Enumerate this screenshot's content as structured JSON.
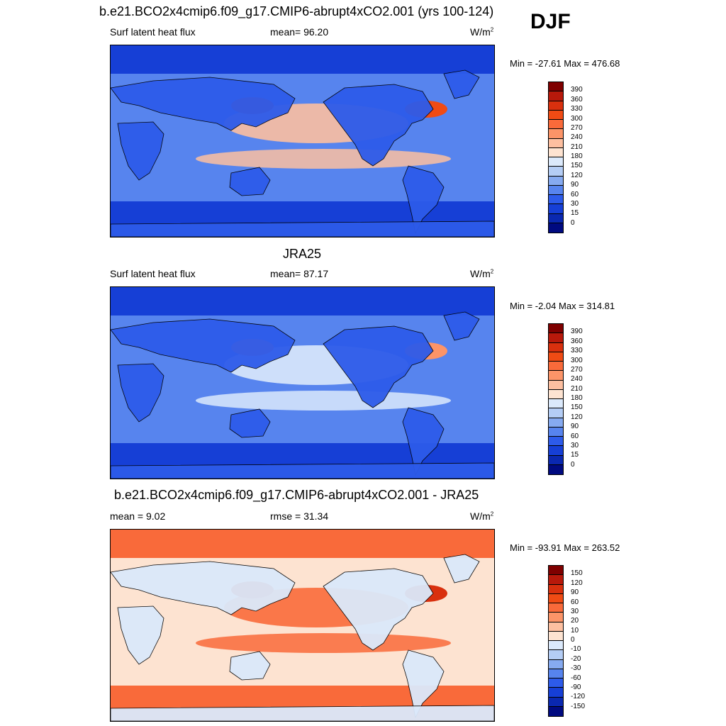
{
  "season": "DJF",
  "panels": [
    {
      "title": "b.e21.BCO2x4cmip6.f09_g17.CMIP6-abrupt4xCO2.001 (yrs 100-124)",
      "left_label": "Surf latent heat flux",
      "center_label": "mean=  96.20",
      "units": "W/m",
      "units_sup": "2",
      "minmax": "Min = -27.61 Max = 476.68",
      "colorbar": {
        "labels": [
          "390",
          "360",
          "330",
          "300",
          "270",
          "240",
          "210",
          "180",
          "150",
          "120",
          "90",
          "60",
          "30",
          "15",
          "0"
        ],
        "colors": [
          "#7f0000",
          "#b8190b",
          "#d9300e",
          "#f04b14",
          "#f96a3a",
          "#fc9468",
          "#fdbfa0",
          "#fde3d1",
          "#dbe9fb",
          "#b4cdf5",
          "#86aaf0",
          "#5784ee",
          "#2d5bea",
          "#163fd6",
          "#0a28b0",
          "#000a80"
        ]
      },
      "field_colors": {
        "ocean_base": "#5784ee",
        "polar": "#163fd6",
        "tropics": "#fdbfa0",
        "hot": "#f04b14",
        "land": "#2d5bea"
      }
    },
    {
      "title": "JRA25",
      "left_label": "Surf latent heat flux",
      "center_label": "mean=  87.17",
      "units": "W/m",
      "units_sup": "2",
      "minmax": "Min =  -2.04 Max = 314.81",
      "colorbar": {
        "labels": [
          "390",
          "360",
          "330",
          "300",
          "270",
          "240",
          "210",
          "180",
          "150",
          "120",
          "90",
          "60",
          "30",
          "15",
          "0"
        ],
        "colors": [
          "#7f0000",
          "#b8190b",
          "#d9300e",
          "#f04b14",
          "#f96a3a",
          "#fc9468",
          "#fdbfa0",
          "#fde3d1",
          "#dbe9fb",
          "#b4cdf5",
          "#86aaf0",
          "#5784ee",
          "#2d5bea",
          "#163fd6",
          "#0a28b0",
          "#000a80"
        ]
      },
      "field_colors": {
        "ocean_base": "#5784ee",
        "polar": "#163fd6",
        "tropics": "#dbe9fb",
        "hot": "#fc9468",
        "land": "#2d5bea"
      }
    },
    {
      "title": "b.e21.BCO2x4cmip6.f09_g17.CMIP6-abrupt4xCO2.001 - JRA25",
      "left_label": "mean =   9.02",
      "center_label": "rmse =  31.34",
      "units": "W/m",
      "units_sup": "2",
      "minmax": "Min = -93.91 Max = 263.52",
      "colorbar": {
        "labels": [
          "150",
          "120",
          "90",
          "60",
          "30",
          "20",
          "10",
          "0",
          "-10",
          "-20",
          "-30",
          "-60",
          "-90",
          "-120",
          "-150"
        ],
        "colors": [
          "#7f0000",
          "#b8190b",
          "#d9300e",
          "#f04b14",
          "#f96a3a",
          "#fc9468",
          "#fdbfa0",
          "#fde3d1",
          "#dbe9fb",
          "#b4cdf5",
          "#86aaf0",
          "#5784ee",
          "#2d5bea",
          "#163fd6",
          "#0a28b0",
          "#000a80"
        ]
      },
      "field_colors": {
        "ocean_base": "#fde3d1",
        "polar": "#f96a3a",
        "tropics": "#f96a3a",
        "hot": "#d9300e",
        "land": "#dbe9fb"
      }
    }
  ]
}
